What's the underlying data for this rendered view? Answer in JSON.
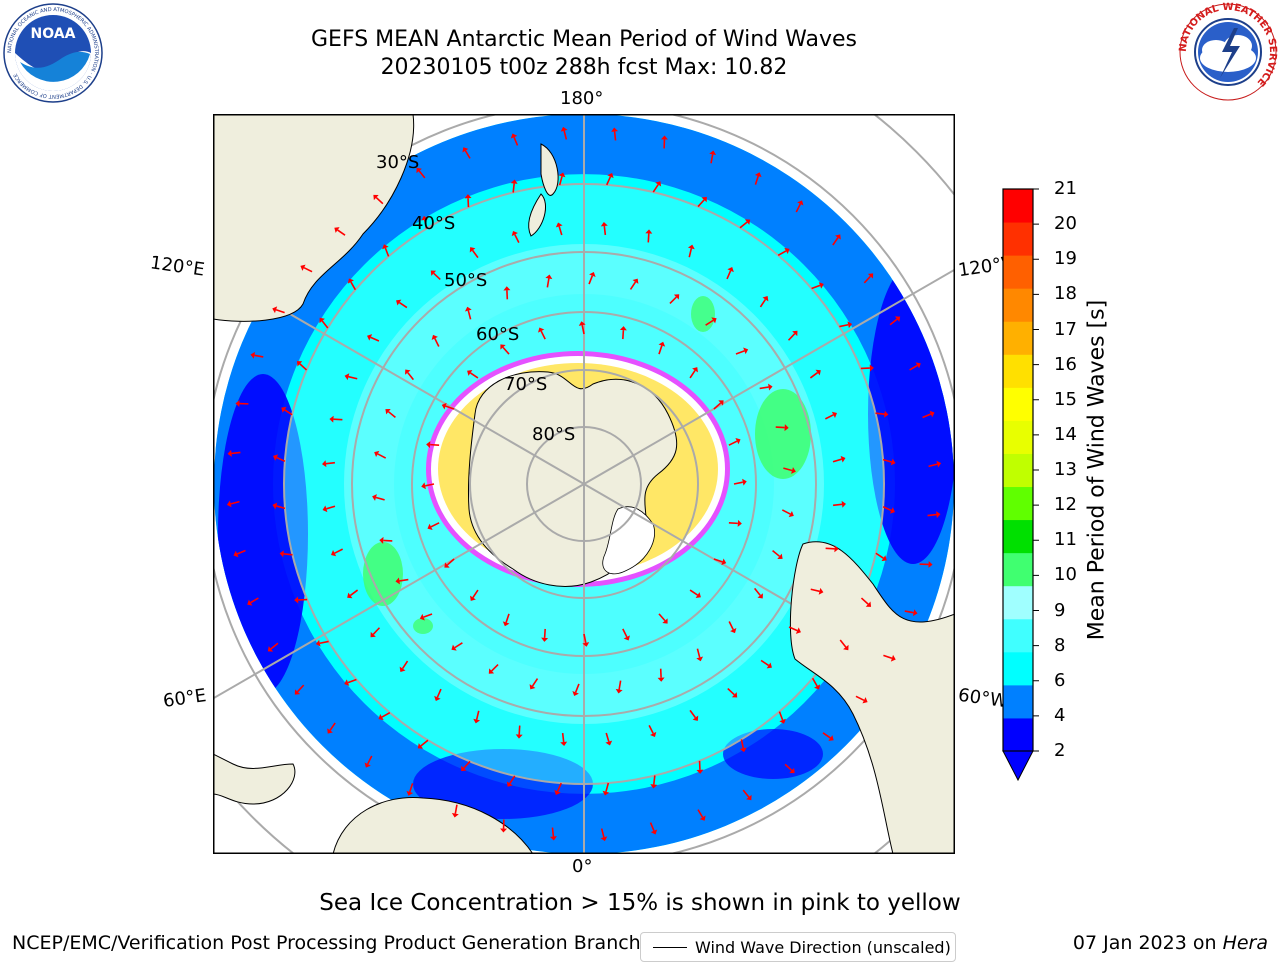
{
  "header": {
    "title_line1": "GEFS MEAN Antarctic Mean Period of Wind Waves",
    "title_line2": "20230105 t00z 288h fcst   Max: 10.82"
  },
  "logos": {
    "left": "NOAA",
    "left_ring_text": "NATIONAL OCEANIC AND ATMOSPHERIC ADMINISTRATION · U.S. DEPARTMENT OF COMMERCE",
    "right_ring_text": "NATIONAL WEATHER SERVICE"
  },
  "map": {
    "projection": "south-polar-stereographic",
    "lon_labels": {
      "top": "180°",
      "bottom": "0°",
      "left_upper": "120°E",
      "left_lower": "60°E",
      "right_upper": "120°W",
      "right_lower": "60°W"
    },
    "lat_labels": [
      "30°S",
      "40°S",
      "50°S",
      "60°S",
      "70°S",
      "80°S"
    ],
    "legend_label": "Wind Wave Direction (unscaled)",
    "arrow_color": "#ff0000",
    "land_color": "#efeedd",
    "sea_ice_colors": [
      "#ff33ff",
      "#ffffff",
      "#ffd700"
    ]
  },
  "colorbar": {
    "title": "Mean Period of Wind Waves [s]",
    "ticks": [
      "21",
      "20",
      "19",
      "18",
      "17",
      "16",
      "15",
      "14",
      "13",
      "12",
      "11",
      "10",
      "9",
      "8",
      "6",
      "4",
      "2"
    ],
    "colors": [
      "#0000ff",
      "#0080ff",
      "#00ffff",
      "#40ffff",
      "#a0ffff",
      "#40ff70",
      "#00e000",
      "#60ff00",
      "#c0ff00",
      "#e8ff00",
      "#ffff00",
      "#ffe000",
      "#ffb000",
      "#ff8800",
      "#ff6000",
      "#ff3000",
      "#ff0000"
    ]
  },
  "footer": {
    "note": "Sea Ice Concentration > 15% is shown in pink to yellow",
    "left": "NCEP/EMC/Verification Post Processing Product Generation Branch",
    "right_prefix": "07 Jan 2023 on ",
    "right_italic": "Hera"
  }
}
